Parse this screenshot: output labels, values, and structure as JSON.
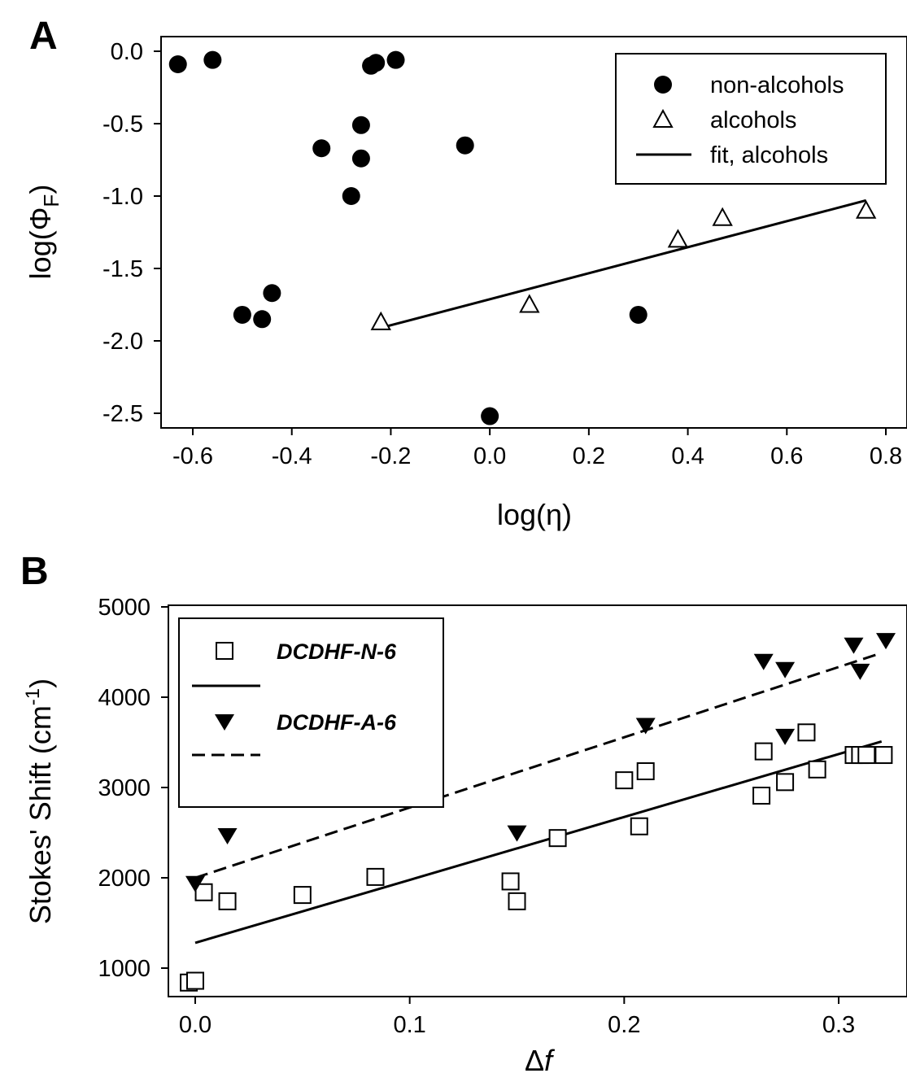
{
  "chart_data": [
    {
      "panel_label": "A",
      "type": "scatter",
      "xlabel": "log(η)",
      "ylabel": "log(ΦF)",
      "ylabel_main": "log(Φ",
      "ylabel_sub": "F",
      "ylabel_close": ")",
      "xlim": [
        -0.7,
        0.85
      ],
      "ylim": [
        -2.6,
        0.1
      ],
      "xticks": [
        -0.6,
        -0.4,
        -0.2,
        0.0,
        0.2,
        0.4,
        0.6,
        0.8
      ],
      "xtick_labels": [
        "-0.6",
        "-0.4",
        "-0.2",
        "0.0",
        "0.2",
        "0.4",
        "0.6",
        "0.8"
      ],
      "yticks": [
        0.0,
        -0.5,
        -1.0,
        -1.5,
        -2.0,
        -2.5
      ],
      "ytick_labels": [
        "0.0",
        "-0.5",
        "-1.0",
        "-1.5",
        "-2.0",
        "-2.5"
      ],
      "legend_position": "top-right",
      "series": [
        {
          "name": "non-alcohols",
          "marker": "filled-circle",
          "points": [
            [
              -0.63,
              -0.09
            ],
            [
              -0.56,
              -0.06
            ],
            [
              -0.5,
              -1.82
            ],
            [
              -0.46,
              -1.85
            ],
            [
              -0.44,
              -1.67
            ],
            [
              -0.34,
              -0.67
            ],
            [
              -0.28,
              -1.0
            ],
            [
              -0.26,
              -0.51
            ],
            [
              -0.26,
              -0.74
            ],
            [
              -0.24,
              -0.1
            ],
            [
              -0.23,
              -0.08
            ],
            [
              -0.19,
              -0.06
            ],
            [
              -0.05,
              -0.65
            ],
            [
              0.0,
              -2.52
            ],
            [
              0.3,
              -1.82
            ]
          ]
        },
        {
          "name": "alcohols",
          "marker": "open-triangle",
          "points": [
            [
              -0.22,
              -1.87
            ],
            [
              0.08,
              -1.75
            ],
            [
              0.38,
              -1.3
            ],
            [
              0.47,
              -1.15
            ],
            [
              0.76,
              -1.1
            ]
          ]
        },
        {
          "name": "fit, alcohols",
          "marker": "solid-line",
          "points": [
            [
              -0.22,
              -1.91
            ],
            [
              0.76,
              -1.03
            ]
          ]
        }
      ]
    },
    {
      "panel_label": "B",
      "type": "scatter",
      "xlabel": "Δf",
      "xlabel_prefix": "Δ",
      "xlabel_var": "f",
      "ylabel": "Stokes' Shift (cm-1)",
      "ylabel_main": "Stokes' Shift (cm",
      "ylabel_sup": "-1",
      "ylabel_close": ")",
      "xlim": [
        -0.012,
        0.33
      ],
      "ylim": [
        800,
        5000
      ],
      "xticks": [
        0.0,
        0.1,
        0.2,
        0.3
      ],
      "xtick_labels": [
        "0.0",
        "0.1",
        "0.2",
        "0.3"
      ],
      "yticks": [
        1000,
        2000,
        3000,
        4000,
        5000
      ],
      "ytick_labels": [
        "1000",
        "2000",
        "3000",
        "4000",
        "5000"
      ],
      "legend_position": "top-left",
      "series": [
        {
          "name": "DCDHF-N-6",
          "marker": "open-square",
          "points": [
            [
              -0.003,
              840
            ],
            [
              0.0,
              860
            ],
            [
              0.004,
              1840
            ],
            [
              0.015,
              1740
            ],
            [
              0.05,
              1810
            ],
            [
              0.084,
              2010
            ],
            [
              0.147,
              1960
            ],
            [
              0.15,
              1740
            ],
            [
              0.169,
              2440
            ],
            [
              0.2,
              3080
            ],
            [
              0.207,
              2570
            ],
            [
              0.21,
              3180
            ],
            [
              0.264,
              2910
            ],
            [
              0.265,
              3400
            ],
            [
              0.275,
              3060
            ],
            [
              0.285,
              3610
            ],
            [
              0.29,
              3200
            ],
            [
              0.307,
              3360
            ],
            [
              0.31,
              3360
            ],
            [
              0.313,
              3360
            ],
            [
              0.321,
              3360
            ]
          ]
        },
        {
          "name": "DCDHF-N-6 fit",
          "marker": "solid-line",
          "points": [
            [
              0.0,
              1280
            ],
            [
              0.32,
              3510
            ]
          ]
        },
        {
          "name": "DCDHF-A-6",
          "marker": "filled-triangle-down",
          "points": [
            [
              0.0,
              1930
            ],
            [
              0.015,
              2460
            ],
            [
              0.15,
              2490
            ],
            [
              0.21,
              3680
            ],
            [
              0.265,
              4390
            ],
            [
              0.275,
              4300
            ],
            [
              0.275,
              3560
            ],
            [
              0.307,
              4570
            ],
            [
              0.31,
              4280
            ],
            [
              0.322,
              4620
            ]
          ]
        },
        {
          "name": "DCDHF-A-6 fit",
          "marker": "dashed-line",
          "points": [
            [
              0.0,
              2000
            ],
            [
              0.32,
              4490
            ]
          ]
        }
      ]
    }
  ]
}
